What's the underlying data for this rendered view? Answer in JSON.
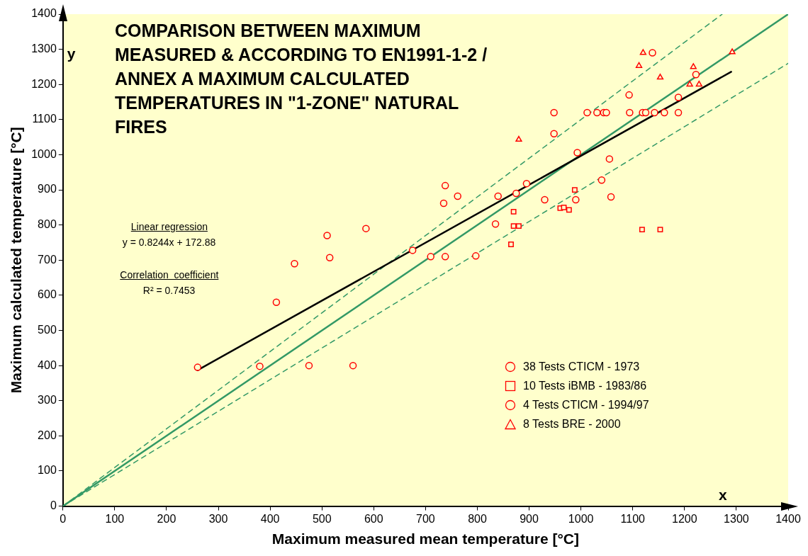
{
  "chart_data": {
    "type": "scatter",
    "title": "COMPARISON BETWEEN MAXIMUM MEASURED & ACCORDING TO EN1991-1-2 / ANNEX A MAXIMUM CALCULATED TEMPERATURES IN \"1-ZONE\" NATURAL FIRES",
    "xlabel": "Maximum measured mean temperature [°C]",
    "ylabel": "Maximum calculated temperature [°C]",
    "annotations": [
      "Linear regression",
      "y = 0.8244x + 172.88",
      "Correlation  coefficient",
      "R² = 0.7453",
      "x",
      "y"
    ],
    "xlim": [
      0,
      1400
    ],
    "ylim": [
      0,
      1400
    ],
    "xticks": [
      0,
      100,
      200,
      300,
      400,
      500,
      600,
      700,
      800,
      900,
      1000,
      1100,
      1200,
      1300,
      1400
    ],
    "yticks": [
      0,
      100,
      200,
      300,
      400,
      500,
      600,
      700,
      800,
      900,
      1000,
      1100,
      1200,
      1300,
      1400
    ],
    "grid": false,
    "legend": "bottom right",
    "series": [
      {
        "name": "38 Tests CTICM  - 1973",
        "color": "#ff0000",
        "marker": "circle",
        "x": [
          260,
          380,
          475,
          560,
          412,
          447,
          515,
          510,
          585,
          675,
          710,
          738,
          797,
          735,
          738,
          762,
          840,
          835,
          875,
          895,
          993,
          1040,
          1055,
          948,
          948,
          1012,
          1031,
          1044,
          1049,
          1094,
          1119,
          1125,
          1142,
          1161,
          1188,
          1188,
          1222,
          1138
        ],
        "values": [
          395,
          398,
          400,
          400,
          580,
          690,
          707,
          770,
          790,
          728,
          710,
          710,
          712,
          862,
          912,
          882,
          882,
          803,
          890,
          918,
          1006,
          928,
          988,
          1120,
          1060,
          1120,
          1120,
          1120,
          1120,
          1120,
          1120,
          1120,
          1120,
          1120,
          1120,
          1163,
          1228,
          1290
        ]
      },
      {
        "name": "10 Tests iBMB  - 1983/86",
        "color": "#ff0000",
        "marker": "square",
        "x": [
          870,
          870,
          880,
          865,
          960,
          967,
          977,
          988,
          1118,
          1153
        ],
        "values": [
          838,
          797,
          797,
          745,
          848,
          850,
          843,
          900,
          787,
          787
        ]
      },
      {
        "name": "4 Tests CTICM  - 1994/97",
        "color": "#ff0000",
        "marker": "circle",
        "x": [
          930,
          990,
          1058,
          1093
        ],
        "values": [
          872,
          872,
          880,
          1170
        ]
      },
      {
        "name": "8 Tests BRE  - 2000",
        "color": "#ff0000",
        "marker": "triangle",
        "x": [
          880,
          1120,
          1112,
          1153,
          1217,
          1210,
          1228,
          1292
        ],
        "values": [
          1043,
          1290,
          1253,
          1220,
          1250,
          1200,
          1200,
          1292
        ]
      },
      {
        "type": "line",
        "color": "#000000",
        "marker": "none",
        "line_style": "solid",
        "x": [
          260,
          1290
        ],
        "values": [
          387,
          1236
        ]
      },
      {
        "type": "line",
        "color": "#339966",
        "marker": "none",
        "line_style": "solid",
        "x": [
          0,
          1400
        ],
        "values": [
          0,
          1400
        ]
      },
      {
        "type": "line",
        "color": "#339966",
        "marker": "none",
        "line_style": "dashed",
        "x": [
          0,
          1272.7
        ],
        "values": [
          0,
          1400
        ]
      },
      {
        "type": "line",
        "color": "#339966",
        "marker": "none",
        "line_style": "dashed",
        "x": [
          0,
          1400
        ],
        "values": [
          0,
          1260
        ]
      }
    ]
  }
}
